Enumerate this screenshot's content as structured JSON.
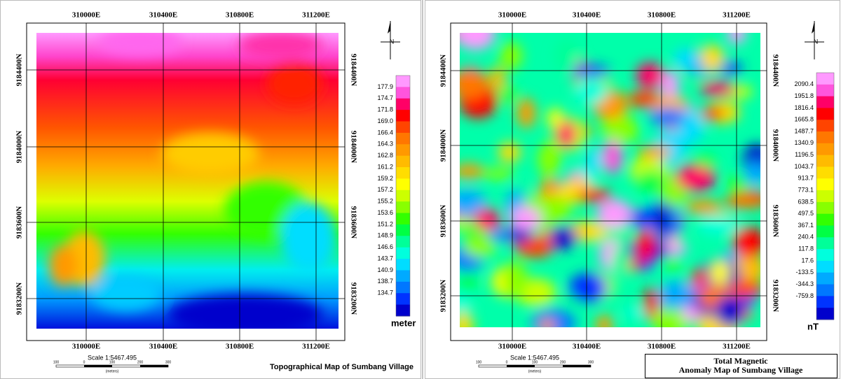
{
  "panels": [
    {
      "easting_labels": [
        "310000E",
        "310400E",
        "310800E",
        "311200E"
      ],
      "northing_labels": [
        "9184400N",
        "9184000N",
        "9183600N",
        "9183200N"
      ],
      "north": "N",
      "legend_values": [
        "177.9",
        "174.7",
        "171.8",
        "169.0",
        "166.4",
        "164.3",
        "162.8",
        "161.2",
        "159.2",
        "157.2",
        "155.2",
        "153.6",
        "151.2",
        "148.9",
        "146.6",
        "143.7",
        "140.9",
        "138.7",
        "134.7"
      ],
      "legend_unit": "meter",
      "scale": "Scale 1:5467.495",
      "scale_bar_labels": [
        "100",
        "0",
        "100",
        "200",
        "300"
      ],
      "scale_unit": "(meters)",
      "title": [
        "Topographical Map of Sumbang Village"
      ]
    },
    {
      "easting_labels": [
        "310000E",
        "310400E",
        "310800E",
        "311200E"
      ],
      "northing_labels": [
        "9184400N",
        "9184000N",
        "9183600N",
        "9183200N"
      ],
      "north": "N",
      "legend_values": [
        "2090.4",
        "1951.8",
        "1816.4",
        "1665.8",
        "1487.7",
        "1340.9",
        "1196.5",
        "1043.7",
        "913.7",
        "773.1",
        "638.5",
        "497.5",
        "367.1",
        "240.4",
        "117.8",
        "17.6",
        "-133.5",
        "-344.3",
        "-759.8"
      ],
      "legend_unit": "nT",
      "scale": "Scale 1:5467.495",
      "scale_bar_labels": [
        "100",
        "0",
        "100",
        "200",
        "300"
      ],
      "scale_unit": "(meters)",
      "title": [
        "Total Magnetic",
        "Anomaly Map of Sumbang Village"
      ]
    }
  ]
}
